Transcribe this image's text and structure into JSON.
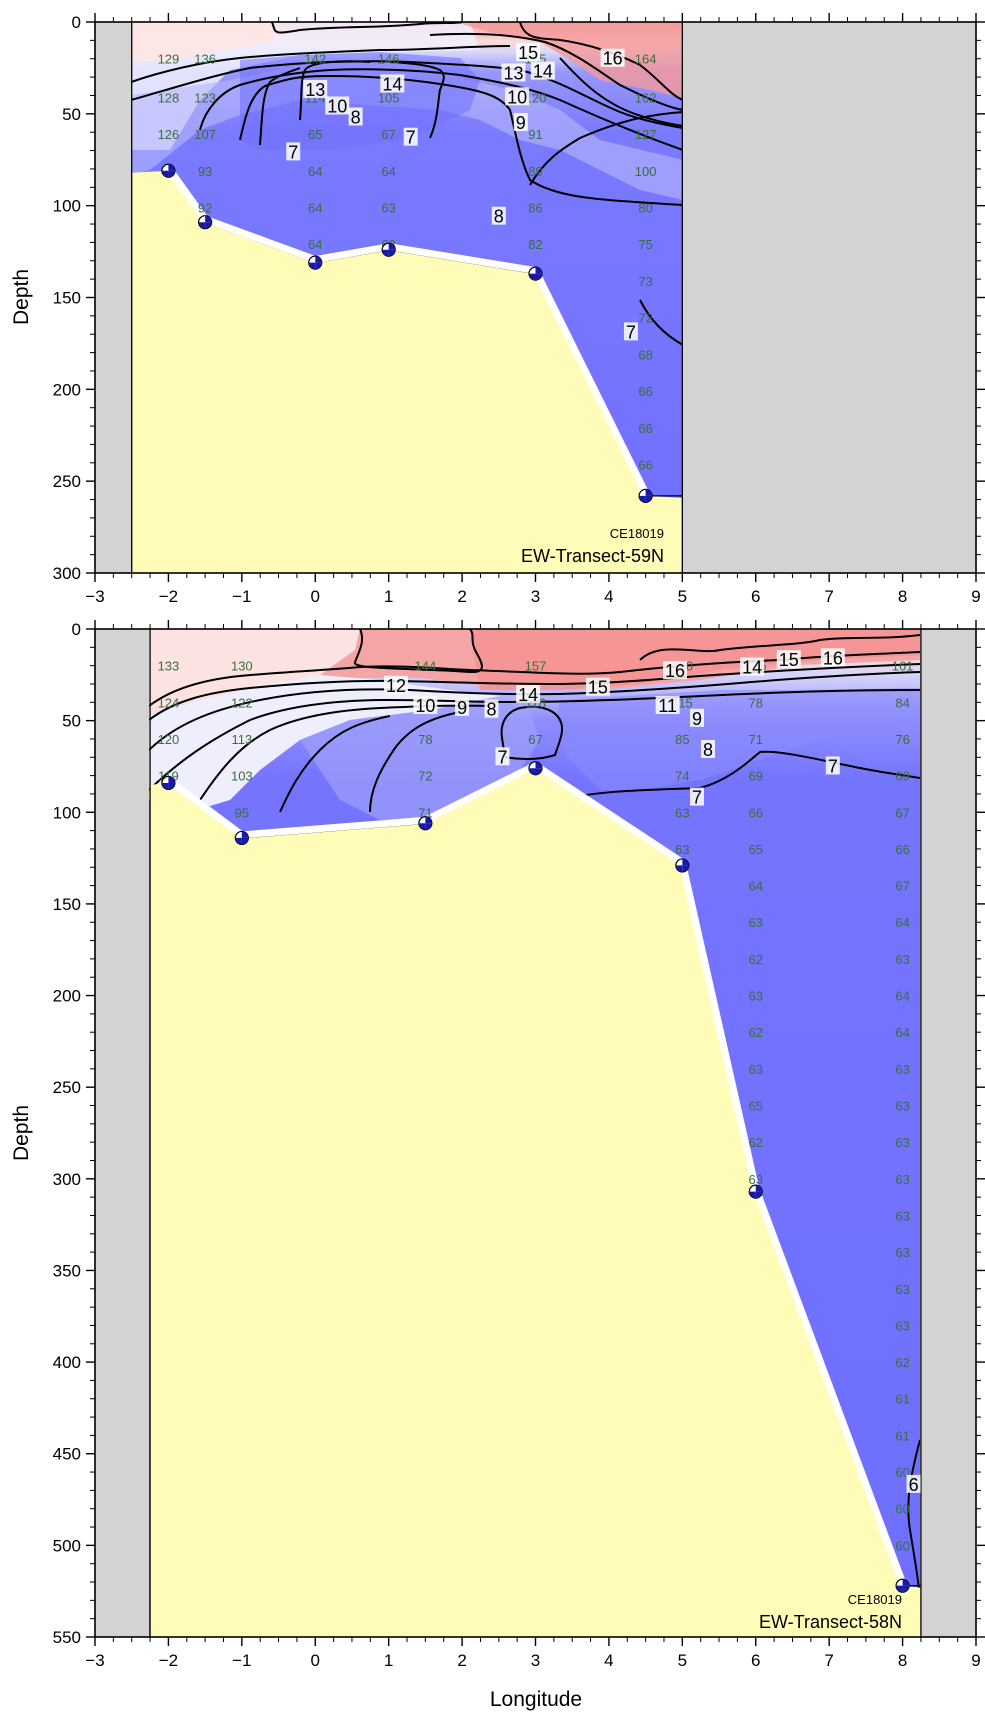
{
  "chart_data": [
    {
      "type": "contour",
      "cruise": "CE18019",
      "transect": "EW-Transect-59N",
      "xlabel": "",
      "ylabel": "Depth",
      "xlim": [
        -3,
        9
      ],
      "ylim": [
        300,
        0
      ],
      "x_ticks": [
        -3,
        -2,
        -1,
        0,
        1,
        2,
        3,
        4,
        5,
        6,
        7,
        8,
        9
      ],
      "y_ticks": [
        0,
        50,
        100,
        150,
        200,
        250,
        300
      ],
      "data_x_range": [
        -2.5,
        5
      ],
      "bathymetry": [
        {
          "lon": -2,
          "depth": 81
        },
        {
          "lon": -1.5,
          "depth": 109
        },
        {
          "lon": 0,
          "depth": 131
        },
        {
          "lon": 1,
          "depth": 124
        },
        {
          "lon": 3,
          "depth": 137
        },
        {
          "lon": 4.5,
          "depth": 258
        }
      ],
      "observations": [
        {
          "lon": -2,
          "depth": 20,
          "value": "129"
        },
        {
          "lon": -2,
          "depth": 41,
          "value": "128"
        },
        {
          "lon": -2,
          "depth": 61,
          "value": "126"
        },
        {
          "lon": -1.5,
          "depth": 20,
          "value": "136"
        },
        {
          "lon": -1.5,
          "depth": 41,
          "value": "123"
        },
        {
          "lon": -1.5,
          "depth": 61,
          "value": "107"
        },
        {
          "lon": -1.5,
          "depth": 81,
          "value": "93"
        },
        {
          "lon": -1.5,
          "depth": 101,
          "value": "92"
        },
        {
          "lon": 0,
          "depth": 20,
          "value": "142"
        },
        {
          "lon": 0,
          "depth": 41,
          "value": "114"
        },
        {
          "lon": 0,
          "depth": 61,
          "value": "65"
        },
        {
          "lon": 0,
          "depth": 81,
          "value": "64"
        },
        {
          "lon": 0,
          "depth": 101,
          "value": "64"
        },
        {
          "lon": 0,
          "depth": 121,
          "value": "64"
        },
        {
          "lon": 1,
          "depth": 20,
          "value": "146"
        },
        {
          "lon": 1,
          "depth": 41,
          "value": "105"
        },
        {
          "lon": 1,
          "depth": 61,
          "value": "67"
        },
        {
          "lon": 1,
          "depth": 81,
          "value": "64"
        },
        {
          "lon": 1,
          "depth": 101,
          "value": "63"
        },
        {
          "lon": 1,
          "depth": 121,
          "value": "63"
        },
        {
          "lon": 3,
          "depth": 20,
          "value": "155"
        },
        {
          "lon": 3,
          "depth": 41,
          "value": "120"
        },
        {
          "lon": 3,
          "depth": 61,
          "value": "91"
        },
        {
          "lon": 3,
          "depth": 81,
          "value": "89"
        },
        {
          "lon": 3,
          "depth": 101,
          "value": "86"
        },
        {
          "lon": 3,
          "depth": 121,
          "value": "82"
        },
        {
          "lon": 4.5,
          "depth": 20,
          "value": "164"
        },
        {
          "lon": 4.5,
          "depth": 41,
          "value": "162"
        },
        {
          "lon": 4.5,
          "depth": 61,
          "value": "127"
        },
        {
          "lon": 4.5,
          "depth": 81,
          "value": "100"
        },
        {
          "lon": 4.5,
          "depth": 101,
          "value": "80"
        },
        {
          "lon": 4.5,
          "depth": 121,
          "value": "75"
        },
        {
          "lon": 4.5,
          "depth": 141,
          "value": "73"
        },
        {
          "lon": 4.5,
          "depth": 161,
          "value": "72"
        },
        {
          "lon": 4.5,
          "depth": 181,
          "value": "68"
        },
        {
          "lon": 4.5,
          "depth": 201,
          "value": "66"
        },
        {
          "lon": 4.5,
          "depth": 221,
          "value": "66"
        },
        {
          "lon": 4.5,
          "depth": 241,
          "value": "66"
        }
      ],
      "contour_labels": [
        {
          "lon": 2.9,
          "depth": 17,
          "text": "15"
        },
        {
          "lon": 4.05,
          "depth": 20,
          "text": "16"
        },
        {
          "lon": 0,
          "depth": 37,
          "text": "13"
        },
        {
          "lon": 1.05,
          "depth": 34,
          "text": "14"
        },
        {
          "lon": 2.7,
          "depth": 28,
          "text": "13"
        },
        {
          "lon": 3.1,
          "depth": 27,
          "text": "14"
        },
        {
          "lon": 0.3,
          "depth": 46,
          "text": "10"
        },
        {
          "lon": 2.75,
          "depth": 41,
          "text": "10"
        },
        {
          "lon": 0.55,
          "depth": 52,
          "text": "8"
        },
        {
          "lon": 2.8,
          "depth": 55,
          "text": "9"
        },
        {
          "lon": 1.3,
          "depth": 63,
          "text": "7"
        },
        {
          "lon": -0.3,
          "depth": 71,
          "text": "7"
        },
        {
          "lon": 2.5,
          "depth": 106,
          "text": "8"
        },
        {
          "lon": 4.3,
          "depth": 169,
          "text": "7"
        }
      ],
      "colors": {
        "warm": "#f5a0a0",
        "cool": "#6f6fff",
        "bottom": "#fffcb8",
        "nodata": "#d3d3d3"
      }
    },
    {
      "type": "contour",
      "cruise": "CE18019",
      "transect": "EW-Transect-58N",
      "xlabel": "Longitude",
      "ylabel": "Depth",
      "xlim": [
        -3,
        9
      ],
      "ylim": [
        550,
        0
      ],
      "x_ticks": [
        -3,
        -2,
        -1,
        0,
        1,
        2,
        3,
        4,
        5,
        6,
        7,
        8,
        9
      ],
      "y_ticks": [
        0,
        50,
        100,
        150,
        200,
        250,
        300,
        350,
        400,
        450,
        500,
        550
      ],
      "data_x_range": [
        -2.25,
        8.25
      ],
      "bathymetry": [
        {
          "lon": -2,
          "depth": 84
        },
        {
          "lon": -1,
          "depth": 114
        },
        {
          "lon": 1.5,
          "depth": 106
        },
        {
          "lon": 3,
          "depth": 76
        },
        {
          "lon": 5,
          "depth": 129
        },
        {
          "lon": 6,
          "depth": 307
        },
        {
          "lon": 8,
          "depth": 522
        }
      ],
      "observations": [
        {
          "lon": -2,
          "depth": 20,
          "value": "133"
        },
        {
          "lon": -2,
          "depth": 40,
          "value": "124"
        },
        {
          "lon": -2,
          "depth": 60,
          "value": "120"
        },
        {
          "lon": -2,
          "depth": 80,
          "value": "119"
        },
        {
          "lon": -1,
          "depth": 20,
          "value": "130"
        },
        {
          "lon": -1,
          "depth": 40,
          "value": "122"
        },
        {
          "lon": -1,
          "depth": 60,
          "value": "113"
        },
        {
          "lon": -1,
          "depth": 80,
          "value": "103"
        },
        {
          "lon": -1,
          "depth": 100,
          "value": "95"
        },
        {
          "lon": 1.5,
          "depth": 20,
          "value": "144"
        },
        {
          "lon": 1.5,
          "depth": 40,
          "value": "99"
        },
        {
          "lon": 1.5,
          "depth": 60,
          "value": "78"
        },
        {
          "lon": 1.5,
          "depth": 80,
          "value": "72"
        },
        {
          "lon": 1.5,
          "depth": 100,
          "value": "71"
        },
        {
          "lon": 3,
          "depth": 20,
          "value": "157"
        },
        {
          "lon": 3,
          "depth": 40,
          "value": "118"
        },
        {
          "lon": 3,
          "depth": 60,
          "value": "67"
        },
        {
          "lon": 5,
          "depth": 20,
          "value": "160"
        },
        {
          "lon": 5,
          "depth": 40,
          "value": "115"
        },
        {
          "lon": 5,
          "depth": 60,
          "value": "85"
        },
        {
          "lon": 5,
          "depth": 80,
          "value": "74"
        },
        {
          "lon": 5,
          "depth": 100,
          "value": "63"
        },
        {
          "lon": 5,
          "depth": 120,
          "value": "63"
        },
        {
          "lon": 6,
          "depth": 20,
          "value": "135"
        },
        {
          "lon": 6,
          "depth": 40,
          "value": "78"
        },
        {
          "lon": 6,
          "depth": 60,
          "value": "71"
        },
        {
          "lon": 6,
          "depth": 80,
          "value": "69"
        },
        {
          "lon": 6,
          "depth": 100,
          "value": "66"
        },
        {
          "lon": 6,
          "depth": 120,
          "value": "65"
        },
        {
          "lon": 6,
          "depth": 140,
          "value": "64"
        },
        {
          "lon": 6,
          "depth": 160,
          "value": "63"
        },
        {
          "lon": 6,
          "depth": 180,
          "value": "62"
        },
        {
          "lon": 6,
          "depth": 200,
          "value": "63"
        },
        {
          "lon": 6,
          "depth": 220,
          "value": "62"
        },
        {
          "lon": 6,
          "depth": 240,
          "value": "63"
        },
        {
          "lon": 6,
          "depth": 260,
          "value": "65"
        },
        {
          "lon": 6,
          "depth": 280,
          "value": "62"
        },
        {
          "lon": 6,
          "depth": 300,
          "value": "63"
        },
        {
          "lon": 8,
          "depth": 20,
          "value": "161"
        },
        {
          "lon": 8,
          "depth": 40,
          "value": "84"
        },
        {
          "lon": 8,
          "depth": 60,
          "value": "76"
        },
        {
          "lon": 8,
          "depth": 80,
          "value": "69"
        },
        {
          "lon": 8,
          "depth": 100,
          "value": "67"
        },
        {
          "lon": 8,
          "depth": 120,
          "value": "66"
        },
        {
          "lon": 8,
          "depth": 140,
          "value": "67"
        },
        {
          "lon": 8,
          "depth": 160,
          "value": "64"
        },
        {
          "lon": 8,
          "depth": 180,
          "value": "63"
        },
        {
          "lon": 8,
          "depth": 200,
          "value": "64"
        },
        {
          "lon": 8,
          "depth": 220,
          "value": "64"
        },
        {
          "lon": 8,
          "depth": 240,
          "value": "63"
        },
        {
          "lon": 8,
          "depth": 260,
          "value": "63"
        },
        {
          "lon": 8,
          "depth": 280,
          "value": "63"
        },
        {
          "lon": 8,
          "depth": 300,
          "value": "63"
        },
        {
          "lon": 8,
          "depth": 320,
          "value": "63"
        },
        {
          "lon": 8,
          "depth": 340,
          "value": "63"
        },
        {
          "lon": 8,
          "depth": 360,
          "value": "63"
        },
        {
          "lon": 8,
          "depth": 380,
          "value": "63"
        },
        {
          "lon": 8,
          "depth": 400,
          "value": "62"
        },
        {
          "lon": 8,
          "depth": 420,
          "value": "61"
        },
        {
          "lon": 8,
          "depth": 440,
          "value": "61"
        },
        {
          "lon": 8,
          "depth": 460,
          "value": "60"
        },
        {
          "lon": 8,
          "depth": 480,
          "value": "60"
        },
        {
          "lon": 8,
          "depth": 500,
          "value": "60"
        }
      ],
      "contour_labels": [
        {
          "lon": 1.1,
          "depth": 31,
          "text": "12"
        },
        {
          "lon": 1.5,
          "depth": 42,
          "text": "10"
        },
        {
          "lon": 2.0,
          "depth": 43,
          "text": "9"
        },
        {
          "lon": 2.4,
          "depth": 44,
          "text": "8"
        },
        {
          "lon": 2.9,
          "depth": 36,
          "text": "14"
        },
        {
          "lon": 3.85,
          "depth": 32,
          "text": "15"
        },
        {
          "lon": 4.9,
          "depth": 23,
          "text": "16"
        },
        {
          "lon": 5.95,
          "depth": 21,
          "text": "14"
        },
        {
          "lon": 6.45,
          "depth": 17,
          "text": "15"
        },
        {
          "lon": 7.05,
          "depth": 16,
          "text": "16"
        },
        {
          "lon": 4.8,
          "depth": 42,
          "text": "11"
        },
        {
          "lon": 5.2,
          "depth": 49,
          "text": "9"
        },
        {
          "lon": 5.35,
          "depth": 66,
          "text": "8"
        },
        {
          "lon": 7.05,
          "depth": 75,
          "text": "7"
        },
        {
          "lon": 2.55,
          "depth": 70,
          "text": "7"
        },
        {
          "lon": 5.2,
          "depth": 92,
          "text": "7"
        },
        {
          "lon": 8.15,
          "depth": 467,
          "text": "6"
        }
      ],
      "colors": {
        "warm": "#f5a0a0",
        "cool": "#6f6fff",
        "bottom": "#fffcb8",
        "nodata": "#d3d3d3"
      }
    }
  ]
}
